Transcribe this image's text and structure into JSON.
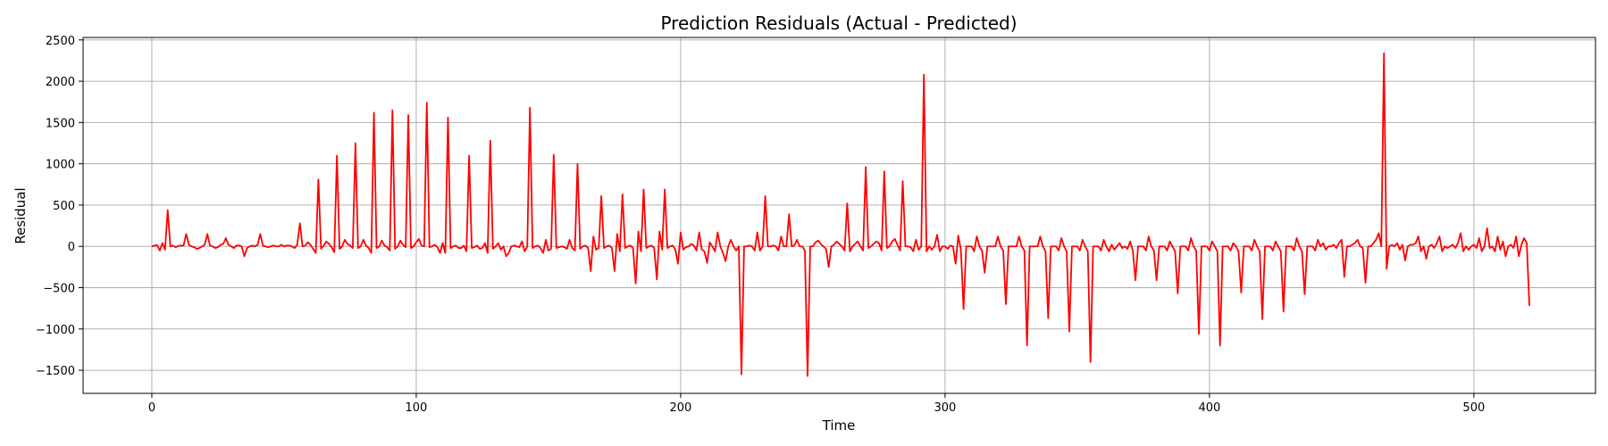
{
  "chart_data": {
    "type": "line",
    "title": "Prediction Residuals (Actual - Predicted)",
    "xlabel": "Time",
    "ylabel": "Residual",
    "xlim": [
      -26,
      546
    ],
    "ylim": [
      -1780,
      2530
    ],
    "xticks": [
      0,
      100,
      200,
      300,
      400,
      500
    ],
    "yticks": [
      -1500,
      -1000,
      -500,
      0,
      500,
      1000,
      1500,
      2000,
      2500
    ],
    "grid": true,
    "series": [
      {
        "color": "#ff0000",
        "x_start": 0,
        "x_step": 1,
        "values": [
          0,
          10,
          15,
          -50,
          40,
          -40,
          440,
          0,
          10,
          -10,
          5,
          10,
          10,
          150,
          20,
          0,
          -10,
          -30,
          -20,
          0,
          20,
          150,
          10,
          0,
          -20,
          -10,
          20,
          30,
          100,
          20,
          0,
          -20,
          10,
          10,
          0,
          -120,
          -20,
          0,
          10,
          0,
          20,
          150,
          10,
          0,
          -10,
          0,
          10,
          0,
          0,
          20,
          0,
          10,
          10,
          0,
          -20,
          20,
          280,
          0,
          10,
          50,
          20,
          -30,
          -80,
          810,
          -30,
          10,
          60,
          30,
          -10,
          -70,
          1100,
          -30,
          0,
          80,
          30,
          10,
          -20,
          1250,
          -20,
          0,
          80,
          10,
          -20,
          -80,
          1620,
          -20,
          0,
          70,
          10,
          -10,
          -50,
          1650,
          -30,
          0,
          70,
          20,
          -10,
          1590,
          -20,
          0,
          50,
          90,
          10,
          0,
          1740,
          -10,
          0,
          20,
          -10,
          -80,
          40,
          -80,
          1560,
          -20,
          0,
          10,
          -20,
          -20,
          10,
          -60,
          1100,
          -20,
          -10,
          10,
          -30,
          -20,
          40,
          -80,
          1280,
          -30,
          0,
          40,
          -40,
          0,
          -120,
          -80,
          0,
          10,
          0,
          -10,
          60,
          -60,
          0,
          1680,
          -20,
          0,
          10,
          -20,
          -80,
          80,
          -50,
          -30,
          1110,
          -20,
          -10,
          0,
          -10,
          -30,
          80,
          -20,
          -50,
          1000,
          -30,
          0,
          10,
          -20,
          -300,
          120,
          -40,
          -20,
          610,
          -20,
          0,
          10,
          -20,
          -300,
          150,
          -60,
          630,
          -20,
          0,
          10,
          -20,
          -450,
          180,
          -60,
          690,
          -20,
          0,
          10,
          -20,
          -400,
          180,
          -40,
          690,
          -20,
          0,
          10,
          -40,
          -210,
          170,
          -40,
          -10,
          0,
          30,
          10,
          -50,
          170,
          -40,
          -60,
          -200,
          50,
          0,
          -60,
          170,
          0,
          -80,
          -180,
          0,
          80,
          0,
          -50,
          0,
          -1550,
          0,
          0,
          10,
          0,
          -50,
          170,
          -50,
          0,
          610,
          0,
          0,
          10,
          0,
          -50,
          120,
          0,
          0,
          390,
          0,
          10,
          80,
          0,
          0,
          -50,
          -1570,
          0,
          0,
          50,
          70,
          30,
          0,
          -30,
          -250,
          0,
          20,
          60,
          30,
          0,
          -50,
          520,
          -60,
          0,
          30,
          60,
          0,
          -50,
          960,
          -20,
          0,
          30,
          60,
          40,
          -50,
          910,
          -20,
          0,
          60,
          90,
          20,
          -50,
          790,
          0,
          0,
          -10,
          -60,
          80,
          -40,
          0,
          2080,
          -60,
          0,
          -40,
          0,
          140,
          -60,
          0,
          0,
          -30,
          10,
          0,
          -210,
          130,
          -40,
          -760,
          0,
          0,
          0,
          -60,
          120,
          0,
          -50,
          -320,
          0,
          0,
          0,
          0,
          120,
          0,
          -50,
          -700,
          0,
          0,
          0,
          0,
          120,
          0,
          -50,
          -1200,
          0,
          0,
          0,
          0,
          120,
          0,
          -60,
          -870,
          0,
          0,
          0,
          -50,
          100,
          0,
          -60,
          -1030,
          0,
          0,
          0,
          -50,
          80,
          0,
          -60,
          -1400,
          0,
          0,
          0,
          -50,
          80,
          0,
          -60,
          20,
          -40,
          0,
          40,
          -20,
          0,
          -30,
          60,
          -50,
          -410,
          0,
          0,
          0,
          -50,
          120,
          0,
          -50,
          -410,
          0,
          0,
          0,
          -50,
          60,
          0,
          -60,
          -570,
          0,
          0,
          0,
          -50,
          100,
          0,
          -50,
          -1060,
          0,
          0,
          0,
          -50,
          60,
          0,
          -60,
          -1200,
          0,
          0,
          0,
          -50,
          40,
          0,
          -60,
          -560,
          0,
          0,
          0,
          -50,
          80,
          0,
          -60,
          -880,
          0,
          0,
          0,
          -50,
          60,
          0,
          -60,
          -790,
          0,
          0,
          0,
          -50,
          100,
          0,
          -60,
          -580,
          0,
          0,
          0,
          -50,
          80,
          0,
          40,
          -40,
          0,
          0,
          20,
          -20,
          40,
          80,
          -370,
          0,
          0,
          20,
          40,
          80,
          0,
          -20,
          -440,
          0,
          0,
          40,
          80,
          160,
          0,
          2340,
          -270,
          0,
          20,
          0,
          40,
          -40,
          20,
          -170,
          0,
          20,
          20,
          40,
          120,
          -60,
          0,
          -150,
          0,
          20,
          -20,
          40,
          120,
          -60,
          0,
          -20,
          0,
          20,
          -20,
          40,
          160,
          -60,
          0,
          -40,
          0,
          20,
          -20,
          100,
          -60,
          0,
          220,
          -20,
          0,
          -60,
          120,
          -40,
          60,
          -120,
          0,
          20,
          -20,
          120,
          -120,
          20,
          100,
          40,
          -720
        ]
      }
    ]
  }
}
